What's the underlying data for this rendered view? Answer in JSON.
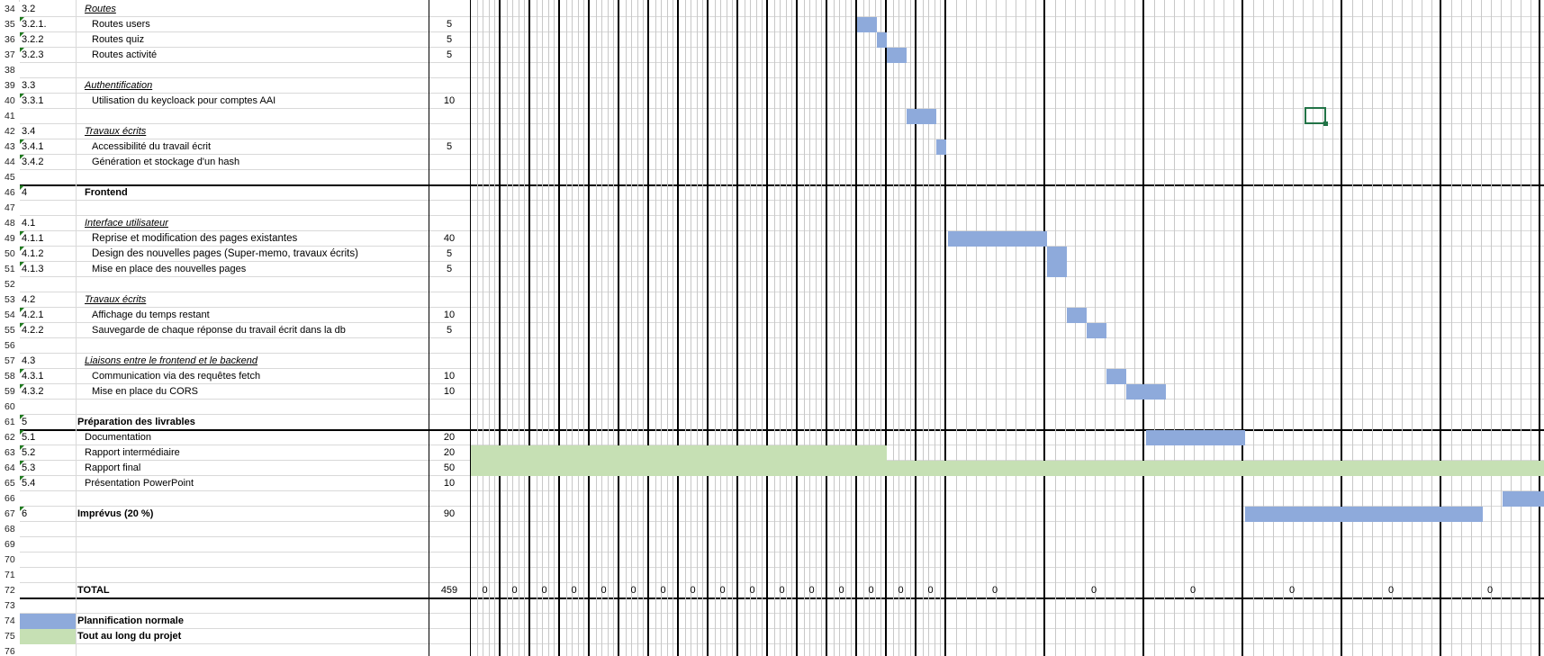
{
  "colors": {
    "planned": "#8eaadb",
    "whole_project": "#c6e0b4",
    "grid": "#d9d9d9",
    "selection": "#217346"
  },
  "rows": [
    {
      "n": "34",
      "id": "3.2",
      "label": "Routes",
      "kind": "sub",
      "hours": "",
      "mark": false
    },
    {
      "n": "35",
      "id": "3.2.1.",
      "label": "Routes users",
      "kind": "task",
      "hours": "5",
      "mark": true
    },
    {
      "n": "36",
      "id": "3.2.2",
      "label": "Routes quiz",
      "kind": "task",
      "hours": "5",
      "mark": true
    },
    {
      "n": "37",
      "id": "3.2.3",
      "label": "Routes activité",
      "kind": "task",
      "hours": "5",
      "mark": true
    },
    {
      "n": "38",
      "id": "",
      "label": "",
      "kind": "task",
      "hours": "",
      "mark": false
    },
    {
      "n": "39",
      "id": "3.3",
      "label": "Authentification",
      "kind": "sub",
      "hours": "",
      "mark": false
    },
    {
      "n": "40",
      "id": "3.3.1",
      "label": "Utilisation du keycloack pour comptes AAI",
      "kind": "task",
      "hours": "10",
      "mark": true
    },
    {
      "n": "41",
      "id": "",
      "label": "",
      "kind": "task",
      "hours": "",
      "mark": false
    },
    {
      "n": "42",
      "id": "3.4",
      "label": "Travaux écrits",
      "kind": "sub",
      "hours": "",
      "mark": false
    },
    {
      "n": "43",
      "id": "3.4.1",
      "label": "Accessibilité du travail écrit",
      "kind": "task",
      "hours": "5",
      "mark": true
    },
    {
      "n": "44",
      "id": "3.4.2",
      "label": "Génération et stockage d'un hash",
      "kind": "task",
      "hours": "",
      "mark": true
    },
    {
      "n": "45",
      "id": "",
      "label": "",
      "kind": "task",
      "hours": "",
      "mark": false
    },
    {
      "n": "46",
      "id": "4",
      "label": "Frontend",
      "kind": "section",
      "hours": "",
      "mark": true
    },
    {
      "n": "47",
      "id": "",
      "label": "",
      "kind": "task",
      "hours": "",
      "mark": false
    },
    {
      "n": "48",
      "id": "4.1",
      "label": "Interface utilisateur",
      "kind": "sub",
      "hours": "",
      "mark": false
    },
    {
      "n": "49",
      "id": "4.1.1",
      "label": "Reprise et modification des pages existantes",
      "kind": "task2",
      "hours": "40",
      "mark": true
    },
    {
      "n": "50",
      "id": "4.1.2",
      "label": "Design des nouvelles pages (Super-memo, travaux écrits)",
      "kind": "task2",
      "hours": "5",
      "mark": true
    },
    {
      "n": "51",
      "id": "4.1.3",
      "label": "Mise en place des nouvelles pages",
      "kind": "task",
      "hours": "5",
      "mark": true
    },
    {
      "n": "52",
      "id": "",
      "label": "",
      "kind": "task",
      "hours": "",
      "mark": false
    },
    {
      "n": "53",
      "id": "4.2",
      "label": "Travaux écrits",
      "kind": "sub",
      "hours": "",
      "mark": false
    },
    {
      "n": "54",
      "id": "4.2.1",
      "label": "Affichage du temps restant",
      "kind": "task",
      "hours": "10",
      "mark": true
    },
    {
      "n": "55",
      "id": "4.2.2",
      "label": "Sauvegarde de chaque réponse du travail écrit dans la db",
      "kind": "task",
      "hours": "5",
      "mark": true
    },
    {
      "n": "56",
      "id": "",
      "label": "",
      "kind": "task",
      "hours": "",
      "mark": false
    },
    {
      "n": "57",
      "id": "4.3",
      "label": "Liaisons entre le frontend et le backend",
      "kind": "sub",
      "hours": "",
      "mark": false
    },
    {
      "n": "58",
      "id": "4.3.1",
      "label": "Communication via des requêtes fetch",
      "kind": "task",
      "hours": "10",
      "mark": true
    },
    {
      "n": "59",
      "id": "4.3.2",
      "label": "Mise en place du CORS",
      "kind": "task",
      "hours": "10",
      "mark": true
    },
    {
      "n": "60",
      "id": "",
      "label": "",
      "kind": "task",
      "hours": "",
      "mark": false
    },
    {
      "n": "61",
      "id": "5",
      "label": "Préparation des livrables",
      "kind": "section5",
      "hours": "",
      "mark": true
    },
    {
      "n": "62",
      "id": "5.1",
      "label": "Documentation",
      "kind": "plain",
      "hours": "20",
      "mark": true
    },
    {
      "n": "63",
      "id": "5.2",
      "label": "Rapport intermédiaire",
      "kind": "plain",
      "hours": "20",
      "mark": true
    },
    {
      "n": "64",
      "id": "5.3",
      "label": "Rapport final",
      "kind": "plain",
      "hours": "50",
      "mark": true
    },
    {
      "n": "65",
      "id": "5.4",
      "label": "Présentation PowerPoint",
      "kind": "plain",
      "hours": "10",
      "mark": true
    },
    {
      "n": "66",
      "id": "",
      "label": "",
      "kind": "task",
      "hours": "",
      "mark": false
    },
    {
      "n": "67",
      "id": "6",
      "label": "Imprévus (20 %)",
      "kind": "section5",
      "hours": "90",
      "mark": true
    },
    {
      "n": "68",
      "id": "",
      "label": "",
      "kind": "task",
      "hours": "",
      "mark": false
    },
    {
      "n": "69",
      "id": "",
      "label": "",
      "kind": "task",
      "hours": "",
      "mark": false
    },
    {
      "n": "70",
      "id": "",
      "label": "",
      "kind": "task",
      "hours": "",
      "mark": false
    },
    {
      "n": "71",
      "id": "",
      "label": "",
      "kind": "task",
      "hours": "",
      "mark": false
    },
    {
      "n": "72",
      "id": "",
      "label": "TOTAL",
      "kind": "section5",
      "hours": "459",
      "mark": false
    },
    {
      "n": "73",
      "id": "",
      "label": "",
      "kind": "task",
      "hours": "",
      "mark": false
    },
    {
      "n": "74",
      "id": "",
      "label": "Plannification normale",
      "kind": "section5",
      "hours": "",
      "mark": false
    },
    {
      "n": "75",
      "id": "",
      "label": "Tout au long du projet",
      "kind": "section5",
      "hours": "",
      "mark": false
    },
    {
      "n": "76",
      "id": "",
      "label": "",
      "kind": "task",
      "hours": "",
      "mark": false
    }
  ],
  "week_totals": [
    "0",
    "0",
    "0",
    "0",
    "0",
    "0",
    "0",
    "0",
    "0",
    "0",
    "0",
    "0",
    "0",
    "0",
    "0",
    "0",
    "0",
    "0",
    "0",
    "0",
    "0",
    "0"
  ]
}
